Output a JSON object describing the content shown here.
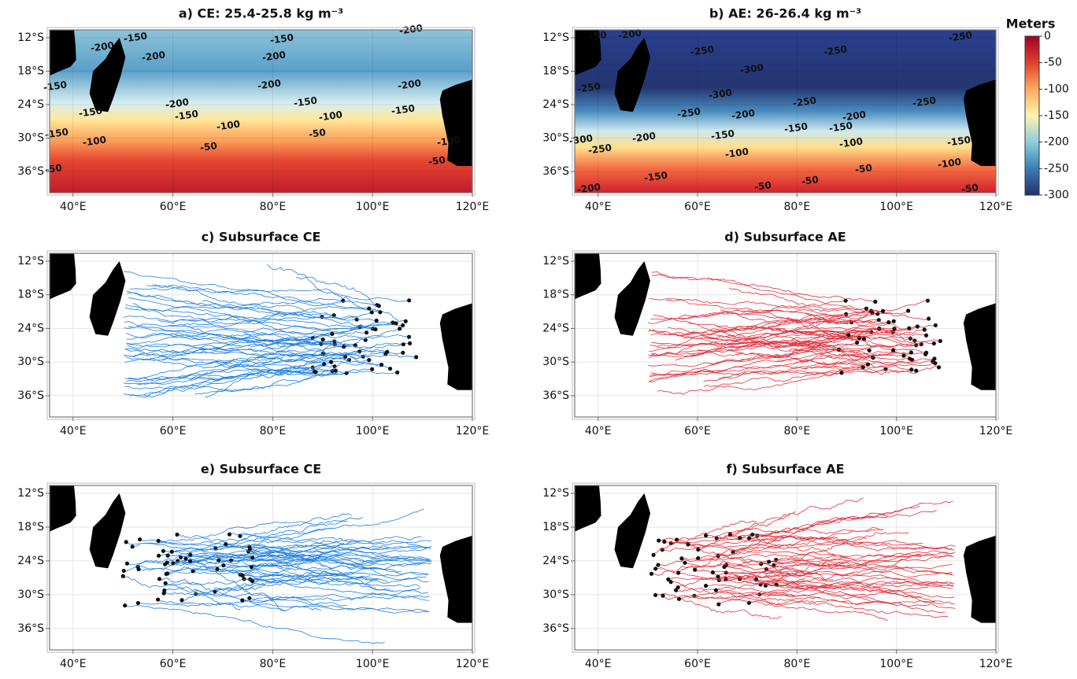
{
  "chart_data": [
    {
      "type": "map",
      "title": "a) CE: 25.4-25.8 kg m⁻³",
      "field": "ce",
      "xlim": [
        35.3,
        120
      ],
      "ylim": [
        -39.8,
        -10.6
      ],
      "xticks": [
        {
          "value": 40,
          "label": "40°E"
        },
        {
          "value": 60,
          "label": "60°E"
        },
        {
          "value": 80,
          "label": "80°E"
        },
        {
          "value": 100,
          "label": "100°E"
        },
        {
          "value": 120,
          "label": "120°E"
        }
      ],
      "yticks": [
        {
          "value": -12,
          "label": "12°S"
        },
        {
          "value": -18,
          "label": "18°S"
        },
        {
          "value": -24,
          "label": "24°S"
        },
        {
          "value": -30,
          "label": "30°S"
        },
        {
          "value": -36,
          "label": "36°S"
        }
      ],
      "contour_labels": [
        -150,
        -200,
        -200,
        -200,
        -150,
        -200,
        -150,
        -200,
        -150,
        -150,
        -150,
        -200,
        -200,
        -150,
        -150,
        -100,
        -100,
        -100,
        -50,
        -50,
        -100,
        -50,
        -50
      ]
    },
    {
      "type": "map",
      "title": "b) AE: 26-26.4 kg m⁻³",
      "field": "ae",
      "xlim": [
        35.3,
        120
      ],
      "ylim": [
        -39.8,
        -10.6
      ],
      "xticks": [
        {
          "value": 40,
          "label": "40°E"
        },
        {
          "value": 60,
          "label": "60°E"
        },
        {
          "value": 80,
          "label": "80°E"
        },
        {
          "value": 100,
          "label": "100°E"
        },
        {
          "value": 120,
          "label": "120°E"
        }
      ],
      "yticks": [
        {
          "value": -12,
          "label": "12°S"
        },
        {
          "value": -18,
          "label": "18°S"
        },
        {
          "value": -24,
          "label": "24°S"
        },
        {
          "value": -30,
          "label": "30°S"
        },
        {
          "value": -36,
          "label": "36°S"
        }
      ],
      "contour_labels": [
        -50,
        -200,
        -250,
        -250,
        -250,
        -300,
        -300,
        -250,
        -250,
        -250,
        -200,
        -250,
        -200,
        -150,
        -150,
        -150,
        -150,
        -200,
        -250,
        -300,
        -100,
        -100,
        -100,
        -50,
        -50,
        -50,
        -50,
        -150,
        -200
      ]
    },
    {
      "type": "map",
      "title": "c) Subsurface CE",
      "track_color": "#1f7fe0",
      "tracks": "west",
      "xlim": [
        35.3,
        120
      ],
      "ylim": [
        -39.8,
        -10.6
      ],
      "xticks": [
        {
          "value": 40,
          "label": "40°E"
        },
        {
          "value": 60,
          "label": "60°E"
        },
        {
          "value": 80,
          "label": "80°E"
        },
        {
          "value": 100,
          "label": "100°E"
        },
        {
          "value": 120,
          "label": "120°E"
        }
      ],
      "yticks": [
        {
          "value": -12,
          "label": "12°S"
        },
        {
          "value": -18,
          "label": "18°S"
        },
        {
          "value": -24,
          "label": "24°S"
        },
        {
          "value": -30,
          "label": "30°S"
        },
        {
          "value": -36,
          "label": "36°S"
        }
      ]
    },
    {
      "type": "map",
      "title": "d) Subsurface AE",
      "track_color": "#e0303e",
      "tracks": "west",
      "xlim": [
        35.3,
        120
      ],
      "ylim": [
        -39.8,
        -10.6
      ],
      "xticks": [
        {
          "value": 40,
          "label": "40°E"
        },
        {
          "value": 60,
          "label": "60°E"
        },
        {
          "value": 80,
          "label": "80°E"
        },
        {
          "value": 100,
          "label": "100°E"
        },
        {
          "value": 120,
          "label": "120°E"
        }
      ],
      "yticks": [
        {
          "value": -12,
          "label": "12°S"
        },
        {
          "value": -18,
          "label": "18°S"
        },
        {
          "value": -24,
          "label": "24°S"
        },
        {
          "value": -30,
          "label": "30°S"
        },
        {
          "value": -36,
          "label": "36°S"
        }
      ]
    },
    {
      "type": "map",
      "title": "e) Subsurface CE",
      "track_color": "#1f7fe0",
      "tracks": "east",
      "xlim": [
        35.3,
        120
      ],
      "ylim": [
        -39.8,
        -10.6
      ],
      "xticks": [
        {
          "value": 40,
          "label": "40°E"
        },
        {
          "value": 60,
          "label": "60°E"
        },
        {
          "value": 80,
          "label": "80°E"
        },
        {
          "value": 100,
          "label": "100°E"
        },
        {
          "value": 120,
          "label": "120°E"
        }
      ],
      "yticks": [
        {
          "value": -12,
          "label": "12°S"
        },
        {
          "value": -18,
          "label": "18°S"
        },
        {
          "value": -24,
          "label": "24°S"
        },
        {
          "value": -30,
          "label": "30°S"
        },
        {
          "value": -36,
          "label": "36°S"
        }
      ]
    },
    {
      "type": "map",
      "title": "f) Subsurface AE",
      "track_color": "#e0303e",
      "tracks": "east",
      "xlim": [
        35.3,
        120
      ],
      "ylim": [
        -39.8,
        -10.6
      ],
      "xticks": [
        {
          "value": 40,
          "label": "40°E"
        },
        {
          "value": 60,
          "label": "60°E"
        },
        {
          "value": 80,
          "label": "80°E"
        },
        {
          "value": 100,
          "label": "100°E"
        },
        {
          "value": 120,
          "label": "120°E"
        }
      ],
      "yticks": [
        {
          "value": -12,
          "label": "12°S"
        },
        {
          "value": -18,
          "label": "18°S"
        },
        {
          "value": -24,
          "label": "24°S"
        },
        {
          "value": -30,
          "label": "30°S"
        },
        {
          "value": -36,
          "label": "36°S"
        }
      ]
    }
  ],
  "colorbar": {
    "label": "Meters",
    "ylim": [
      -300,
      0
    ],
    "yticks": [
      0,
      -50,
      -100,
      -150,
      -200,
      -250,
      -300
    ]
  }
}
